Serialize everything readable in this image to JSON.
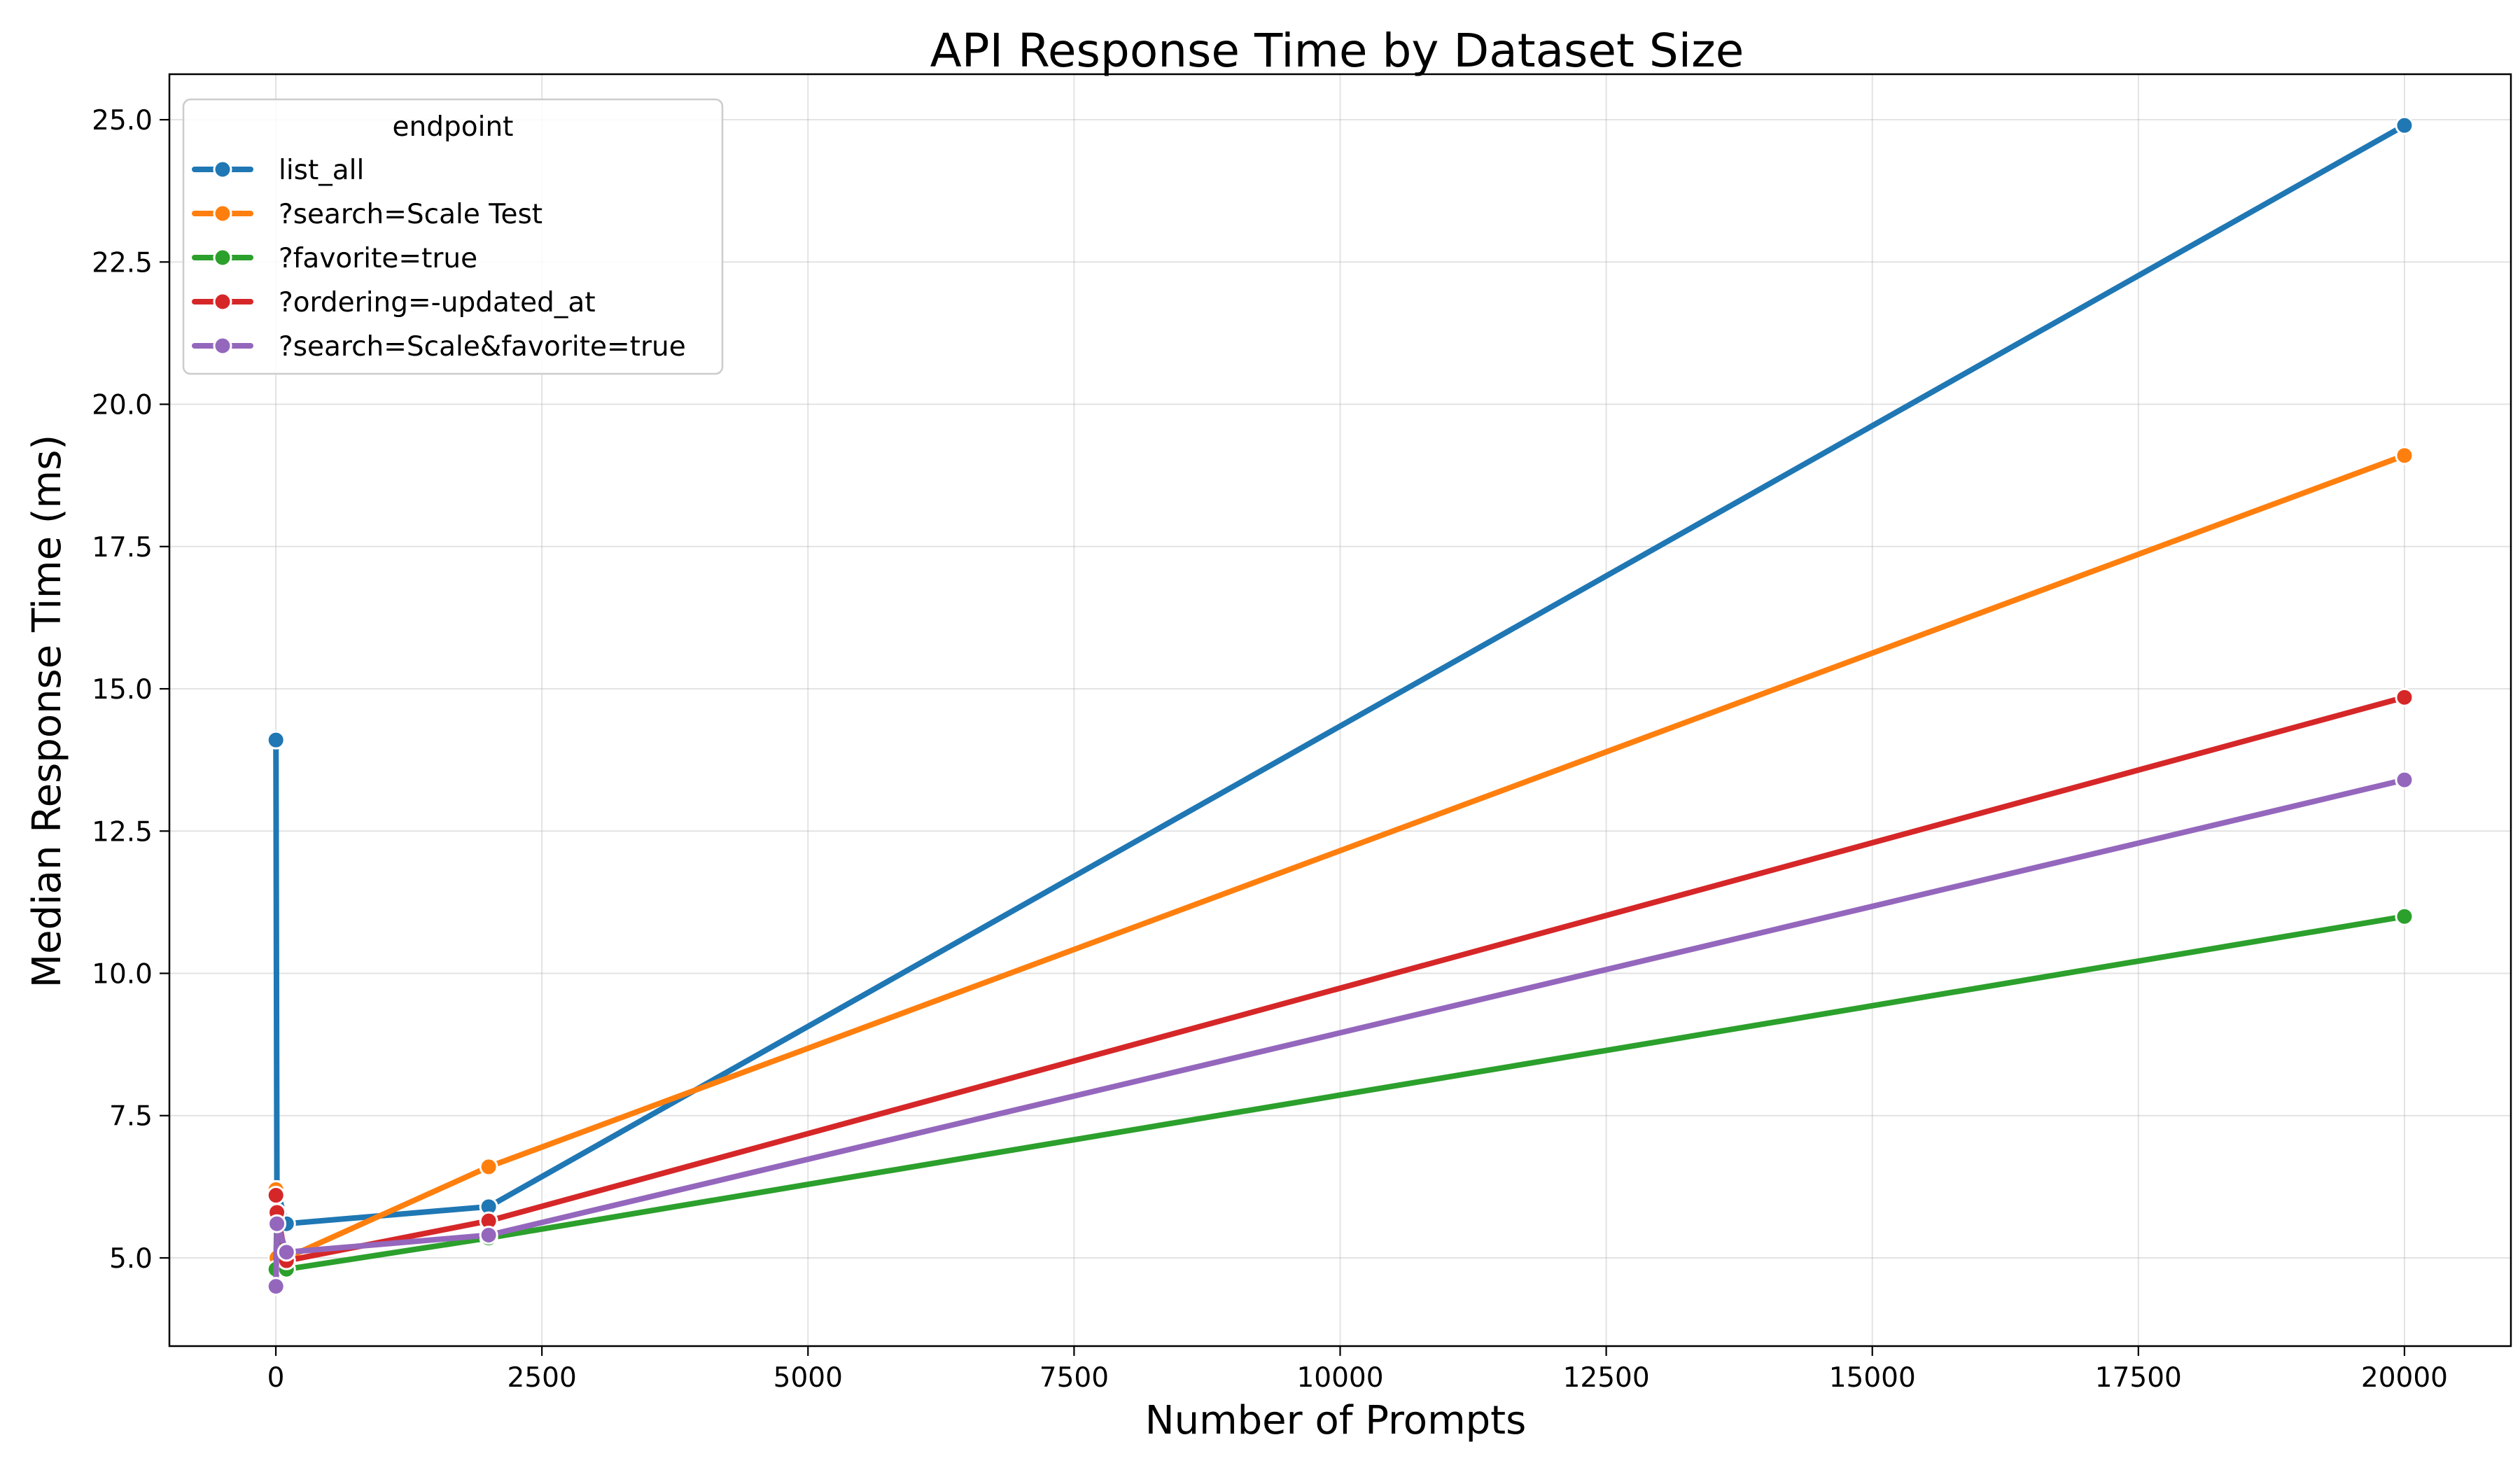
{
  "chart_data": {
    "type": "line",
    "title": "API Response Time by Dataset Size",
    "xlabel": "Number of Prompts",
    "ylabel": "Median Response Time (ms)",
    "xlim": [
      -1000,
      21000
    ],
    "ylim": [
      3.45,
      25.8
    ],
    "xticks": [
      0,
      2500,
      5000,
      7500,
      10000,
      12500,
      15000,
      17500,
      20000
    ],
    "yticks": [
      5.0,
      7.5,
      10.0,
      12.5,
      15.0,
      17.5,
      20.0,
      22.5,
      25.0
    ],
    "grid": true,
    "legend": {
      "title": "endpoint",
      "position": "top-left"
    },
    "x": [
      1,
      10,
      100,
      2000,
      20000
    ],
    "series": [
      {
        "name": "list_all",
        "color": "#1f77b4",
        "values": [
          14.1,
          6.2,
          5.6,
          5.9,
          24.9
        ]
      },
      {
        "name": "?search=Scale Test",
        "color": "#ff7f0e",
        "values": [
          6.2,
          5.0,
          5.0,
          6.6,
          19.1
        ]
      },
      {
        "name": "?favorite=true",
        "color": "#2ca02c",
        "values": [
          4.8,
          5.8,
          4.8,
          5.35,
          11.0
        ]
      },
      {
        "name": "?ordering=-updated_at",
        "color": "#d62728",
        "values": [
          6.1,
          5.8,
          4.95,
          5.65,
          14.85
        ]
      },
      {
        "name": "?search=Scale&favorite=true",
        "color": "#9467bd",
        "values": [
          4.5,
          5.6,
          5.1,
          5.4,
          13.4
        ]
      }
    ]
  }
}
